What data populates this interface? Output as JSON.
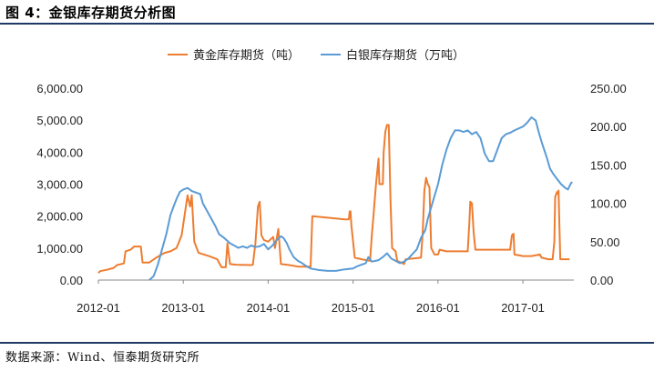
{
  "header": {
    "title": "图 4：金银库存期货分析图"
  },
  "footer": {
    "source": "数据来源：Wind、恒泰期货研究所"
  },
  "chart_data": {
    "type": "line",
    "legend_position": "top",
    "grid": false,
    "x_ticks": [
      "2012-01",
      "2013-01",
      "2014-01",
      "2015-01",
      "2016-01",
      "2017-01"
    ],
    "y_left": {
      "lim": [
        0,
        6000
      ],
      "ticks": [
        "0.00",
        "1,000.00",
        "2,000.00",
        "3,000.00",
        "4,000.00",
        "5,000.00",
        "6,000.00"
      ]
    },
    "y_right": {
      "lim": [
        0,
        250
      ],
      "ticks": [
        "0.00",
        "50.00",
        "100.00",
        "150.00",
        "200.00",
        "250.00"
      ]
    },
    "series": [
      {
        "name": "黄金库存期货（吨）",
        "color": "#ED7D31",
        "axis": "left",
        "points": [
          [
            2012.0,
            220
          ],
          [
            2012.02,
            280
          ],
          [
            2012.1,
            320
          ],
          [
            2012.18,
            380
          ],
          [
            2012.22,
            470
          ],
          [
            2012.3,
            520
          ],
          [
            2012.32,
            900
          ],
          [
            2012.38,
            950
          ],
          [
            2012.42,
            1050
          ],
          [
            2012.5,
            1050
          ],
          [
            2012.52,
            550
          ],
          [
            2012.6,
            550
          ],
          [
            2012.68,
            700
          ],
          [
            2012.78,
            850
          ],
          [
            2012.85,
            900
          ],
          [
            2012.92,
            1000
          ],
          [
            2012.98,
            1400
          ],
          [
            2013.05,
            2650
          ],
          [
            2013.08,
            2300
          ],
          [
            2013.1,
            2650
          ],
          [
            2013.13,
            1200
          ],
          [
            2013.18,
            850
          ],
          [
            2013.3,
            750
          ],
          [
            2013.4,
            650
          ],
          [
            2013.45,
            400
          ],
          [
            2013.5,
            400
          ],
          [
            2013.52,
            1150
          ],
          [
            2013.55,
            500
          ],
          [
            2013.62,
            480
          ],
          [
            2013.8,
            470
          ],
          [
            2013.82,
            480
          ],
          [
            2013.85,
            1150
          ],
          [
            2013.88,
            2300
          ],
          [
            2013.9,
            2450
          ],
          [
            2013.92,
            1400
          ],
          [
            2013.95,
            1250
          ],
          [
            2014.0,
            1200
          ],
          [
            2014.06,
            1350
          ],
          [
            2014.08,
            1000
          ],
          [
            2014.12,
            1600
          ],
          [
            2014.15,
            500
          ],
          [
            2014.25,
            470
          ],
          [
            2014.35,
            420
          ],
          [
            2014.5,
            420
          ],
          [
            2014.52,
            2000
          ],
          [
            2014.7,
            1950
          ],
          [
            2014.9,
            1900
          ],
          [
            2014.95,
            1900
          ],
          [
            2014.96,
            2150
          ],
          [
            2014.97,
            2150
          ],
          [
            2014.98,
            1700
          ],
          [
            2015.02,
            700
          ],
          [
            2015.1,
            650
          ],
          [
            2015.2,
            600
          ],
          [
            2015.22,
            1400
          ],
          [
            2015.24,
            2000
          ],
          [
            2015.27,
            3000
          ],
          [
            2015.3,
            3800
          ],
          [
            2015.31,
            3000
          ],
          [
            2015.35,
            3000
          ],
          [
            2015.36,
            4000
          ],
          [
            2015.38,
            4650
          ],
          [
            2015.4,
            4850
          ],
          [
            2015.42,
            4850
          ],
          [
            2015.44,
            2500
          ],
          [
            2015.46,
            1000
          ],
          [
            2015.5,
            900
          ],
          [
            2015.52,
            600
          ],
          [
            2015.6,
            500
          ],
          [
            2015.62,
            650
          ],
          [
            2015.8,
            700
          ],
          [
            2015.82,
            1500
          ],
          [
            2015.84,
            2800
          ],
          [
            2015.86,
            3200
          ],
          [
            2015.88,
            3000
          ],
          [
            2015.9,
            2900
          ],
          [
            2015.92,
            1000
          ],
          [
            2015.96,
            800
          ],
          [
            2016.0,
            800
          ],
          [
            2016.02,
            950
          ],
          [
            2016.1,
            900
          ],
          [
            2016.35,
            900
          ],
          [
            2016.37,
            1800
          ],
          [
            2016.38,
            2450
          ],
          [
            2016.4,
            2400
          ],
          [
            2016.42,
            1500
          ],
          [
            2016.44,
            950
          ],
          [
            2016.6,
            950
          ],
          [
            2016.8,
            950
          ],
          [
            2016.85,
            950
          ],
          [
            2016.87,
            1400
          ],
          [
            2016.89,
            1450
          ],
          [
            2016.9,
            800
          ],
          [
            2017.0,
            750
          ],
          [
            2017.1,
            750
          ],
          [
            2017.2,
            800
          ],
          [
            2017.22,
            700
          ],
          [
            2017.3,
            650
          ],
          [
            2017.35,
            650
          ],
          [
            2017.37,
            1200
          ],
          [
            2017.38,
            2600
          ],
          [
            2017.4,
            2750
          ],
          [
            2017.41,
            2700
          ],
          [
            2017.42,
            2800
          ],
          [
            2017.44,
            650
          ],
          [
            2017.5,
            650
          ],
          [
            2017.55,
            650
          ]
        ]
      },
      {
        "name": "白银库存期货（万吨）",
        "color": "#5B9BD5",
        "axis": "right",
        "points": [
          [
            2012.6,
            0
          ],
          [
            2012.65,
            5
          ],
          [
            2012.7,
            20
          ],
          [
            2012.75,
            40
          ],
          [
            2012.8,
            60
          ],
          [
            2012.85,
            85
          ],
          [
            2012.9,
            100
          ],
          [
            2012.93,
            108
          ],
          [
            2012.96,
            115
          ],
          [
            2013.0,
            118
          ],
          [
            2013.05,
            120
          ],
          [
            2013.1,
            116
          ],
          [
            2013.15,
            114
          ],
          [
            2013.2,
            112
          ],
          [
            2013.23,
            100
          ],
          [
            2013.28,
            90
          ],
          [
            2013.33,
            80
          ],
          [
            2013.38,
            70
          ],
          [
            2013.42,
            60
          ],
          [
            2013.48,
            55
          ],
          [
            2013.55,
            48
          ],
          [
            2013.6,
            45
          ],
          [
            2013.65,
            42
          ],
          [
            2013.7,
            44
          ],
          [
            2013.75,
            42
          ],
          [
            2013.8,
            45
          ],
          [
            2013.85,
            43
          ],
          [
            2013.9,
            44
          ],
          [
            2013.95,
            47
          ],
          [
            2014.0,
            40
          ],
          [
            2014.05,
            45
          ],
          [
            2014.1,
            52
          ],
          [
            2014.15,
            57
          ],
          [
            2014.18,
            55
          ],
          [
            2014.22,
            48
          ],
          [
            2014.25,
            40
          ],
          [
            2014.3,
            30
          ],
          [
            2014.35,
            25
          ],
          [
            2014.4,
            22
          ],
          [
            2014.45,
            18
          ],
          [
            2014.5,
            15
          ],
          [
            2014.6,
            13
          ],
          [
            2014.7,
            12
          ],
          [
            2014.8,
            12
          ],
          [
            2014.9,
            14
          ],
          [
            2015.0,
            15
          ],
          [
            2015.05,
            18
          ],
          [
            2015.1,
            20
          ],
          [
            2015.15,
            22
          ],
          [
            2015.18,
            30
          ],
          [
            2015.22,
            24
          ],
          [
            2015.3,
            26
          ],
          [
            2015.35,
            30
          ],
          [
            2015.4,
            35
          ],
          [
            2015.45,
            28
          ],
          [
            2015.5,
            25
          ],
          [
            2015.55,
            22
          ],
          [
            2015.6,
            24
          ],
          [
            2015.65,
            28
          ],
          [
            2015.7,
            34
          ],
          [
            2015.75,
            40
          ],
          [
            2015.8,
            55
          ],
          [
            2015.85,
            65
          ],
          [
            2015.88,
            80
          ],
          [
            2015.92,
            95
          ],
          [
            2016.0,
            125
          ],
          [
            2016.05,
            150
          ],
          [
            2016.1,
            170
          ],
          [
            2016.15,
            185
          ],
          [
            2016.2,
            195
          ],
          [
            2016.25,
            195
          ],
          [
            2016.3,
            193
          ],
          [
            2016.35,
            195
          ],
          [
            2016.4,
            190
          ],
          [
            2016.45,
            193
          ],
          [
            2016.5,
            185
          ],
          [
            2016.55,
            165
          ],
          [
            2016.6,
            155
          ],
          [
            2016.65,
            155
          ],
          [
            2016.7,
            170
          ],
          [
            2016.75,
            185
          ],
          [
            2016.8,
            190
          ],
          [
            2016.85,
            192
          ],
          [
            2016.9,
            195
          ],
          [
            2017.0,
            200
          ],
          [
            2017.05,
            205
          ],
          [
            2017.1,
            212
          ],
          [
            2017.15,
            208
          ],
          [
            2017.18,
            195
          ],
          [
            2017.22,
            180
          ],
          [
            2017.28,
            160
          ],
          [
            2017.32,
            145
          ],
          [
            2017.36,
            138
          ],
          [
            2017.4,
            132
          ],
          [
            2017.45,
            125
          ],
          [
            2017.5,
            120
          ],
          [
            2017.53,
            118
          ],
          [
            2017.56,
            125
          ],
          [
            2017.58,
            128
          ]
        ]
      }
    ]
  }
}
